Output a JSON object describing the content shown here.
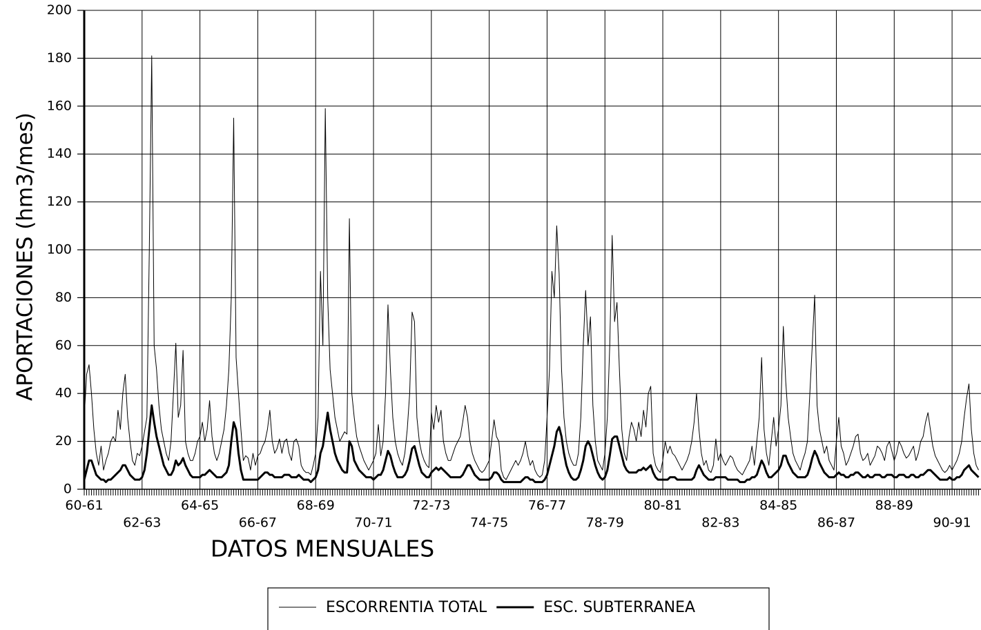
{
  "chart_data": {
    "type": "line",
    "x_label": "DATOS MENSUALES",
    "y_label": "APORTACIONES (hm3/mes)",
    "categories": [
      "60-61",
      null,
      null,
      null,
      null,
      null,
      null,
      null,
      null,
      null,
      null,
      null,
      null,
      null,
      null,
      null,
      null,
      null,
      null,
      null,
      null,
      null,
      null,
      null,
      "62-63",
      null,
      null,
      null,
      null,
      null,
      null,
      null,
      null,
      null,
      null,
      null,
      null,
      null,
      null,
      null,
      null,
      null,
      null,
      null,
      null,
      null,
      null,
      null,
      "64-65",
      null,
      null,
      null,
      null,
      null,
      null,
      null,
      null,
      null,
      null,
      null,
      null,
      null,
      null,
      null,
      null,
      null,
      null,
      null,
      null,
      null,
      null,
      null,
      "66-67",
      null,
      null,
      null,
      null,
      null,
      null,
      null,
      null,
      null,
      null,
      null,
      null,
      null,
      null,
      null,
      null,
      null,
      null,
      null,
      null,
      null,
      null,
      null,
      "68-69",
      null,
      null,
      null,
      null,
      null,
      null,
      null,
      null,
      null,
      null,
      null,
      null,
      null,
      null,
      null,
      null,
      null,
      null,
      null,
      null,
      null,
      null,
      null,
      "70-71",
      null,
      null,
      null,
      null,
      null,
      null,
      null,
      null,
      null,
      null,
      null,
      null,
      null,
      null,
      null,
      null,
      null,
      null,
      null,
      null,
      null,
      null,
      null,
      "72-73",
      null,
      null,
      null,
      null,
      null,
      null,
      null,
      null,
      null,
      null,
      null,
      null,
      null,
      null,
      null,
      null,
      null,
      null,
      null,
      null,
      null,
      null,
      null,
      "74-75",
      null,
      null,
      null,
      null,
      null,
      null,
      null,
      null,
      null,
      null,
      null,
      null,
      null,
      null,
      null,
      null,
      null,
      null,
      null,
      null,
      null,
      null,
      null,
      "76-77",
      null,
      null,
      null,
      null,
      null,
      null,
      null,
      null,
      null,
      null,
      null,
      null,
      null,
      null,
      null,
      null,
      null,
      null,
      null,
      null,
      null,
      null,
      null,
      "78-79",
      null,
      null,
      null,
      null,
      null,
      null,
      null,
      null,
      null,
      null,
      null,
      null,
      null,
      null,
      null,
      null,
      null,
      null,
      null,
      null,
      null,
      null,
      null,
      "80-81",
      null,
      null,
      null,
      null,
      null,
      null,
      null,
      null,
      null,
      null,
      null,
      null,
      null,
      null,
      null,
      null,
      null,
      null,
      null,
      null,
      null,
      null,
      null,
      "82-83",
      null,
      null,
      null,
      null,
      null,
      null,
      null,
      null,
      null,
      null,
      null,
      null,
      null,
      null,
      null,
      null,
      null,
      null,
      null,
      null,
      null,
      null,
      null,
      "84-85",
      null,
      null,
      null,
      null,
      null,
      null,
      null,
      null,
      null,
      null,
      null,
      null,
      null,
      null,
      null,
      null,
      null,
      null,
      null,
      null,
      null,
      null,
      null,
      "86-87",
      null,
      null,
      null,
      null,
      null,
      null,
      null,
      null,
      null,
      null,
      null,
      null,
      null,
      null,
      null,
      null,
      null,
      null,
      null,
      null,
      null,
      null,
      null,
      "88-89",
      null,
      null,
      null,
      null,
      null,
      null,
      null,
      null,
      null,
      null,
      null,
      null,
      null,
      null,
      null,
      null,
      null,
      null,
      null,
      null,
      null,
      null,
      null,
      "90-91",
      null,
      null,
      null,
      null,
      null,
      null,
      null,
      null,
      null,
      null,
      null
    ],
    "series": [
      {
        "name": "ESCORRENTIA TOTAL",
        "color": "#000000",
        "line_width": 1,
        "values": [
          30,
          48,
          52,
          40,
          25,
          15,
          10,
          18,
          8,
          12,
          15,
          20,
          22,
          20,
          33,
          25,
          40,
          48,
          30,
          20,
          12,
          10,
          15,
          14,
          18,
          24,
          30,
          100,
          181,
          60,
          50,
          35,
          25,
          20,
          15,
          12,
          20,
          40,
          61,
          30,
          35,
          58,
          20,
          15,
          12,
          12,
          15,
          20,
          22,
          28,
          20,
          25,
          37,
          22,
          15,
          12,
          15,
          20,
          25,
          35,
          50,
          80,
          155,
          55,
          40,
          25,
          12,
          14,
          13,
          8,
          15,
          10,
          14,
          15,
          18,
          20,
          25,
          33,
          20,
          15,
          17,
          21,
          15,
          20,
          21,
          15,
          12,
          20,
          21,
          18,
          10,
          8,
          7,
          7,
          6,
          10,
          15,
          30,
          91,
          60,
          159,
          80,
          50,
          40,
          30,
          25,
          20,
          22,
          24,
          23,
          113,
          40,
          30,
          22,
          18,
          15,
          12,
          10,
          8,
          10,
          12,
          15,
          27,
          14,
          20,
          40,
          77,
          50,
          30,
          20,
          15,
          12,
          10,
          15,
          25,
          40,
          74,
          70,
          30,
          20,
          15,
          12,
          10,
          9,
          32,
          25,
          35,
          28,
          33,
          20,
          15,
          12,
          12,
          15,
          18,
          20,
          22,
          28,
          35,
          30,
          20,
          15,
          12,
          10,
          8,
          7,
          8,
          10,
          12,
          20,
          29,
          22,
          20,
          8,
          5,
          4,
          6,
          8,
          10,
          12,
          10,
          12,
          15,
          20,
          14,
          10,
          12,
          8,
          6,
          5,
          6,
          12,
          30,
          50,
          91,
          80,
          110,
          90,
          50,
          30,
          20,
          15,
          12,
          10,
          10,
          15,
          30,
          60,
          83,
          60,
          72,
          35,
          20,
          12,
          10,
          8,
          15,
          30,
          60,
          106,
          70,
          78,
          50,
          25,
          15,
          12,
          22,
          28,
          25,
          20,
          28,
          22,
          33,
          26,
          40,
          43,
          15,
          10,
          8,
          7,
          12,
          20,
          15,
          18,
          15,
          14,
          12,
          10,
          8,
          10,
          12,
          15,
          20,
          28,
          40,
          25,
          15,
          10,
          12,
          8,
          7,
          10,
          21,
          12,
          15,
          12,
          10,
          12,
          14,
          13,
          10,
          8,
          7,
          6,
          8,
          10,
          12,
          18,
          10,
          20,
          30,
          55,
          25,
          15,
          10,
          20,
          30,
          18,
          25,
          35,
          68,
          45,
          30,
          22,
          15,
          12,
          10,
          8,
          12,
          15,
          20,
          40,
          60,
          81,
          35,
          25,
          20,
          15,
          18,
          12,
          10,
          8,
          20,
          30,
          18,
          15,
          10,
          12,
          15,
          18,
          22,
          23,
          15,
          12,
          13,
          15,
          10,
          12,
          14,
          18,
          17,
          15,
          12,
          18,
          20,
          16,
          12,
          15,
          20,
          18,
          15,
          13,
          14,
          16,
          18,
          12,
          15,
          20,
          22,
          28,
          32,
          25,
          18,
          14,
          12,
          10,
          8,
          7,
          8,
          10,
          8,
          10,
          12,
          15,
          20,
          30,
          38,
          44,
          25,
          15,
          10,
          8
        ]
      },
      {
        "name": "ESC. SUBTERRANEA",
        "color": "#000000",
        "line_width": 3,
        "values": [
          4,
          8,
          12,
          12,
          9,
          6,
          5,
          4,
          4,
          3,
          4,
          4,
          5,
          6,
          7,
          8,
          10,
          10,
          8,
          6,
          5,
          4,
          4,
          4,
          5,
          8,
          15,
          25,
          35,
          28,
          22,
          18,
          14,
          10,
          8,
          6,
          6,
          8,
          12,
          10,
          11,
          13,
          10,
          8,
          6,
          5,
          5,
          5,
          5,
          6,
          6,
          7,
          8,
          7,
          6,
          5,
          5,
          5,
          6,
          7,
          10,
          20,
          28,
          25,
          15,
          8,
          4,
          4,
          4,
          4,
          4,
          4,
          4,
          5,
          6,
          7,
          7,
          6,
          6,
          5,
          5,
          5,
          5,
          6,
          6,
          6,
          5,
          5,
          5,
          6,
          5,
          4,
          4,
          4,
          3,
          4,
          5,
          8,
          15,
          18,
          25,
          32,
          25,
          20,
          15,
          12,
          10,
          8,
          7,
          7,
          20,
          18,
          12,
          10,
          8,
          7,
          6,
          5,
          5,
          5,
          4,
          5,
          6,
          6,
          8,
          12,
          16,
          14,
          10,
          7,
          5,
          5,
          5,
          6,
          8,
          12,
          17,
          18,
          14,
          10,
          7,
          6,
          5,
          5,
          7,
          8,
          9,
          8,
          9,
          8,
          7,
          6,
          5,
          5,
          5,
          5,
          5,
          6,
          8,
          10,
          10,
          8,
          6,
          5,
          4,
          4,
          4,
          4,
          4,
          5,
          7,
          7,
          6,
          4,
          3,
          3,
          3,
          3,
          3,
          3,
          3,
          3,
          4,
          5,
          5,
          4,
          4,
          3,
          3,
          3,
          3,
          4,
          6,
          10,
          14,
          18,
          24,
          26,
          22,
          15,
          10,
          7,
          5,
          4,
          4,
          5,
          8,
          12,
          18,
          20,
          18,
          14,
          10,
          7,
          5,
          4,
          5,
          8,
          14,
          21,
          22,
          22,
          18,
          14,
          10,
          8,
          7,
          7,
          7,
          7,
          8,
          8,
          9,
          8,
          9,
          10,
          7,
          5,
          4,
          4,
          4,
          4,
          4,
          5,
          5,
          5,
          4,
          4,
          4,
          4,
          4,
          4,
          4,
          5,
          8,
          10,
          8,
          6,
          5,
          4,
          4,
          4,
          5,
          5,
          5,
          5,
          5,
          4,
          4,
          4,
          4,
          4,
          3,
          3,
          3,
          4,
          4,
          5,
          5,
          6,
          9,
          12,
          10,
          7,
          5,
          5,
          6,
          7,
          8,
          10,
          14,
          14,
          11,
          9,
          7,
          6,
          5,
          5,
          5,
          5,
          6,
          9,
          13,
          16,
          14,
          11,
          9,
          7,
          6,
          5,
          5,
          5,
          6,
          7,
          6,
          6,
          5,
          5,
          6,
          6,
          7,
          7,
          6,
          5,
          5,
          6,
          5,
          5,
          6,
          6,
          6,
          5,
          5,
          6,
          6,
          6,
          5,
          5,
          6,
          6,
          6,
          5,
          5,
          6,
          6,
          5,
          5,
          6,
          6,
          7,
          8,
          8,
          7,
          6,
          5,
          4,
          4,
          4,
          4,
          5,
          4,
          4,
          5,
          5,
          6,
          8,
          9,
          10,
          8,
          7,
          6,
          5
        ]
      }
    ],
    "ylim": [
      0,
      200
    ],
    "yticks": [
      0,
      20,
      40,
      60,
      80,
      100,
      120,
      140,
      160,
      180,
      200
    ],
    "grid": true,
    "legend": "bottom"
  }
}
